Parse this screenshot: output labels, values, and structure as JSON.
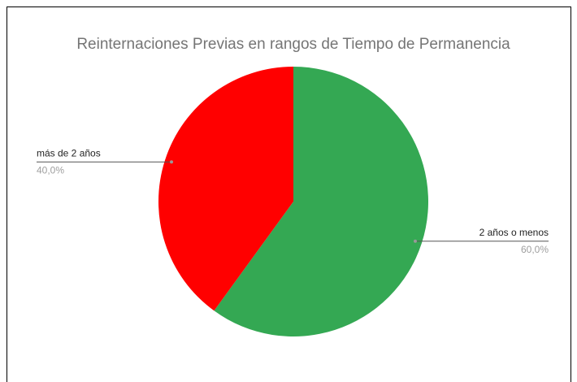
{
  "chart_data": {
    "type": "pie",
    "title": "Reinternaciones Previas en rangos de Tiempo de Permanencia",
    "categories": [
      "2 años o menos",
      "más de 2 años"
    ],
    "values": [
      60,
      40
    ],
    "value_labels": [
      "60,0%",
      "40,0%"
    ],
    "colors": [
      "#34a853",
      "#ff0000"
    ]
  }
}
